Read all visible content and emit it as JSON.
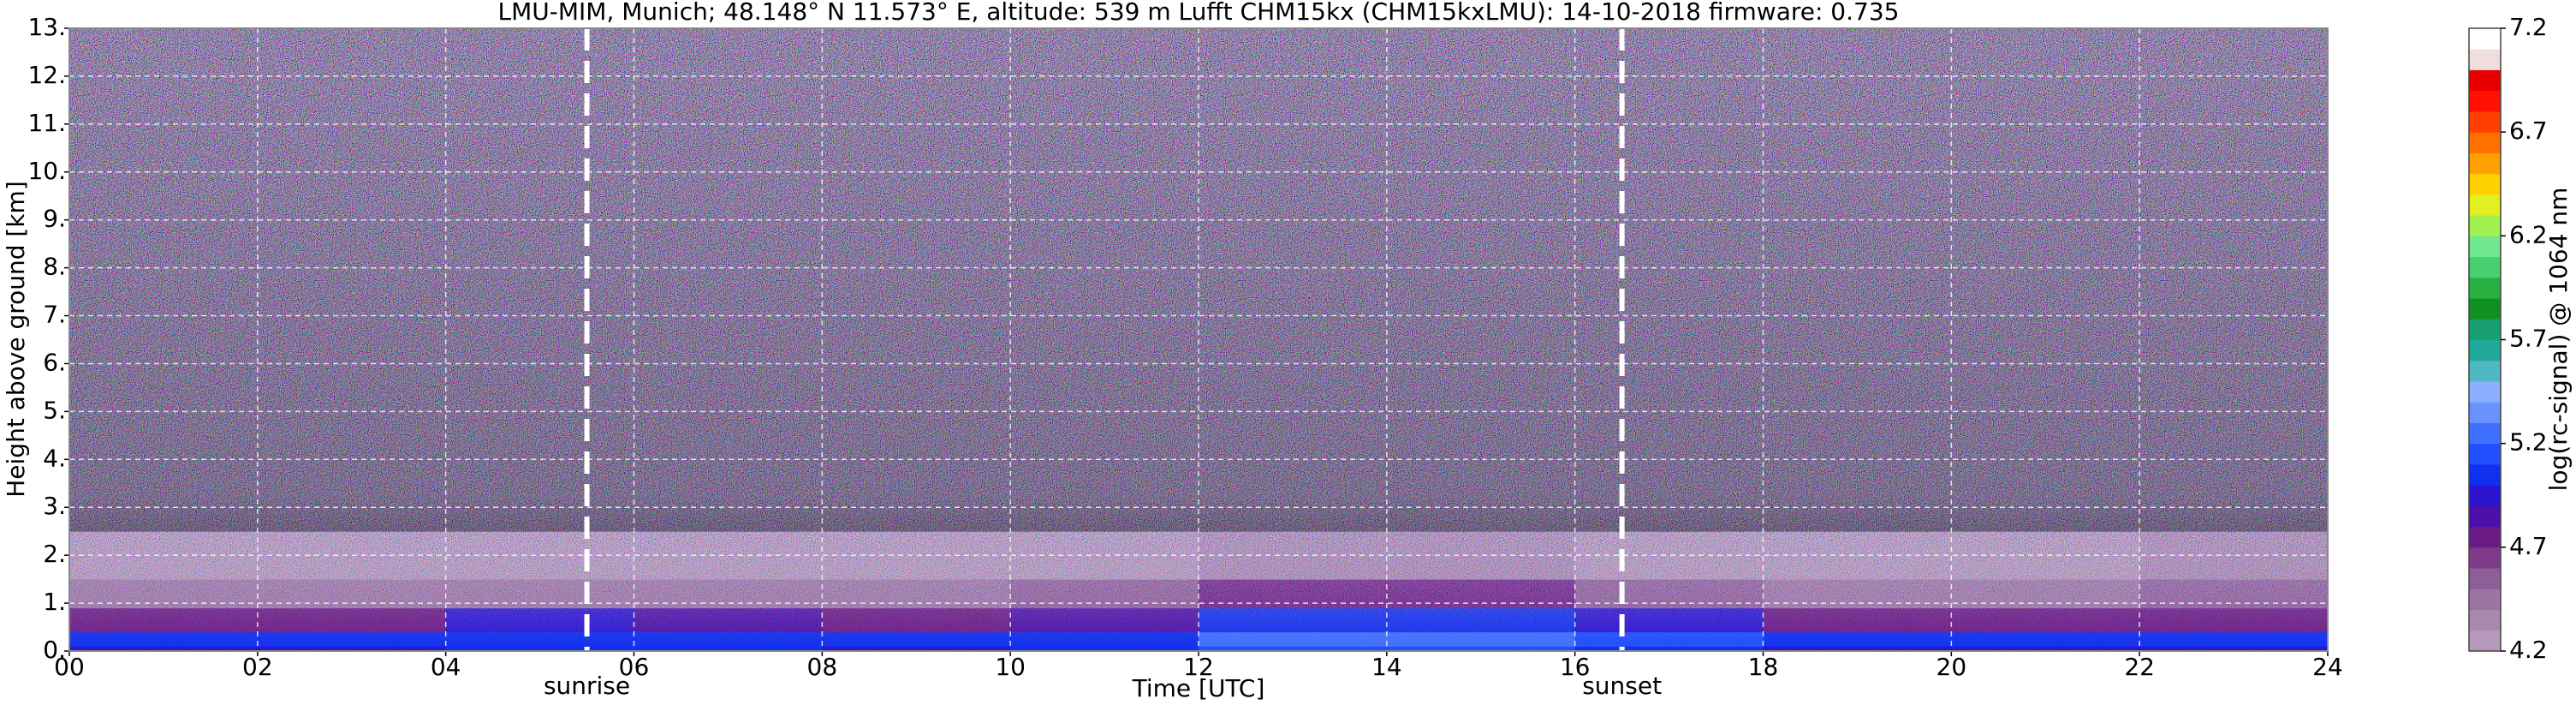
{
  "chart_data": {
    "type": "heatmap",
    "title": "LMU-MIM, Munich; 48.148° N 11.573° E, altitude: 539 m    Lufft CHM15kx (CHM15kxLMU): 14-10-2018    firmware: 0.735",
    "xlabel": "Time [UTC]",
    "ylabel": "Height above ground [km]",
    "colorbar_label": "log(rc-signal) @ 1064 nm",
    "x_edges": [
      0,
      2,
      4,
      6,
      8,
      10,
      12,
      14,
      16,
      18,
      20,
      22,
      24
    ],
    "y_edges": [
      0,
      0.1,
      0.4,
      0.9,
      1.5,
      2.5,
      4,
      13
    ],
    "z": [
      [
        5.0,
        5.0,
        5.05,
        5.05,
        5.0,
        5.05,
        5.15,
        5.15,
        5.1,
        5.0,
        5.0,
        5.0
      ],
      [
        5.1,
        5.1,
        5.1,
        5.1,
        5.05,
        5.1,
        5.2,
        5.2,
        5.15,
        5.05,
        5.05,
        5.05
      ],
      [
        4.8,
        4.8,
        5.0,
        4.85,
        4.8,
        4.85,
        5.05,
        5.05,
        4.95,
        4.78,
        4.75,
        4.78
      ],
      [
        4.5,
        4.5,
        4.5,
        4.5,
        4.5,
        4.55,
        4.7,
        4.7,
        4.6,
        4.5,
        4.5,
        4.6
      ],
      [
        4.3,
        4.3,
        4.3,
        4.3,
        4.3,
        4.3,
        4.35,
        4.35,
        4.3,
        4.3,
        4.3,
        4.35
      ],
      [
        4.1,
        4.1,
        4.1,
        4.1,
        4.1,
        4.1,
        4.1,
        4.1,
        4.1,
        4.1,
        4.1,
        4.1
      ],
      [
        4.0,
        4.0,
        4.0,
        4.0,
        4.0,
        4.0,
        4.0,
        4.0,
        4.0,
        4.0,
        4.0,
        4.0
      ]
    ],
    "xlim": [
      0,
      24
    ],
    "xticks": [
      {
        "value": 0,
        "label": "00"
      },
      {
        "value": 2,
        "label": "02"
      },
      {
        "value": 4,
        "label": "04"
      },
      {
        "value": 6,
        "label": "06"
      },
      {
        "value": 8,
        "label": "08"
      },
      {
        "value": 10,
        "label": "10"
      },
      12,
      14,
      16,
      18,
      20,
      22,
      24
    ],
    "ylim": [
      0,
      13
    ],
    "yticks": [
      {
        "value": 0,
        "label": "0."
      },
      {
        "value": 1,
        "label": "1."
      },
      {
        "value": 2,
        "label": "2."
      },
      {
        "value": 3,
        "label": "3."
      },
      {
        "value": 4,
        "label": "4."
      },
      {
        "value": 5,
        "label": "5."
      },
      {
        "value": 6,
        "label": "6."
      },
      {
        "value": 7,
        "label": "7."
      },
      {
        "value": 8,
        "label": "8."
      },
      {
        "value": 9,
        "label": "9."
      },
      {
        "value": 10,
        "label": "10."
      },
      {
        "value": 11,
        "label": "11."
      },
      {
        "value": 12,
        "label": "12."
      },
      {
        "value": 13,
        "label": "13."
      }
    ],
    "clim": [
      4.2,
      7.2
    ],
    "cticks": [
      4.2,
      4.7,
      5.2,
      5.7,
      6.2,
      6.7,
      7.2
    ],
    "colorscale": [
      "#b49ab8",
      "#a98aae",
      "#9c76a3",
      "#8e5e98",
      "#7e3c8a",
      "#6a1a84",
      "#4c10a8",
      "#2a14d0",
      "#1030f0",
      "#2050ff",
      "#4070ff",
      "#6a92ff",
      "#8cb0ff",
      "#50b8c0",
      "#20a898",
      "#18a070",
      "#109020",
      "#28b040",
      "#48d070",
      "#70e890",
      "#a0f050",
      "#e0f020",
      "#ffd000",
      "#ffa000",
      "#ff7000",
      "#ff4000",
      "#ff1000",
      "#e80000",
      "#f0dede",
      "#ffffff"
    ],
    "under_color": "#28222f",
    "grid": true,
    "annotations": [
      {
        "x": 5.5,
        "label": "sunrise"
      },
      {
        "x": 16.5,
        "label": "sunset"
      }
    ]
  }
}
